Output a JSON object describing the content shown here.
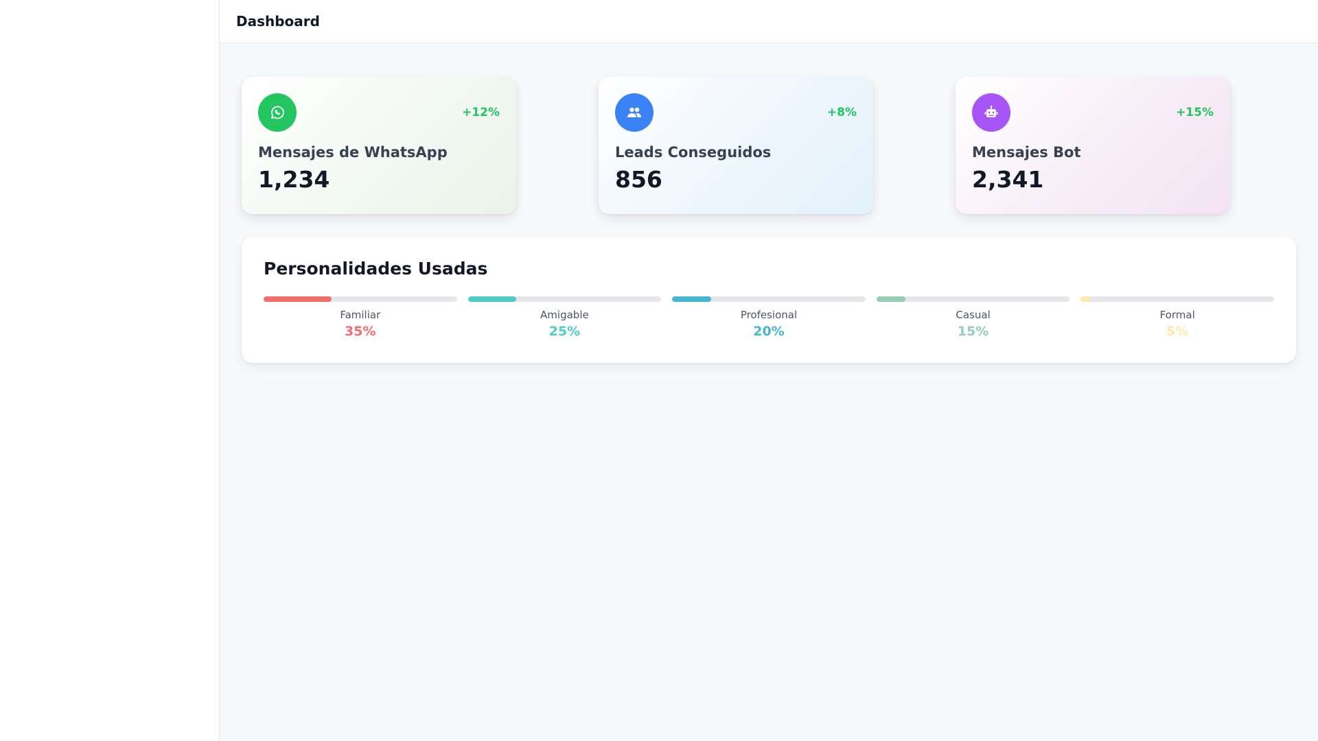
{
  "header": {
    "title": "Dashboard"
  },
  "stats": [
    {
      "title": "Mensajes de WhatsApp",
      "value": "1,234",
      "trend": "+12%",
      "icon": "whatsapp-icon",
      "color": "#22c55e"
    },
    {
      "title": "Leads Conseguidos",
      "value": "856",
      "trend": "+8%",
      "icon": "users-icon",
      "color": "#3b82f6"
    },
    {
      "title": "Mensajes Bot",
      "value": "2,341",
      "trend": "+15%",
      "icon": "robot-icon",
      "color": "#a855f7"
    }
  ],
  "personalities": {
    "title": "Personalidades Usadas",
    "items": [
      {
        "label": "Familiar",
        "percent": "35%",
        "fraction": 0.35,
        "color": "#f56c6c"
      },
      {
        "label": "Amigable",
        "percent": "25%",
        "fraction": 0.25,
        "color": "#4ecdc4"
      },
      {
        "label": "Profesional",
        "percent": "20%",
        "fraction": 0.2,
        "color": "#45b7d1"
      },
      {
        "label": "Casual",
        "percent": "15%",
        "fraction": 0.15,
        "color": "#96ceb4"
      },
      {
        "label": "Formal",
        "percent": "5%",
        "fraction": 0.05,
        "color": "#ffeaa7"
      }
    ]
  }
}
